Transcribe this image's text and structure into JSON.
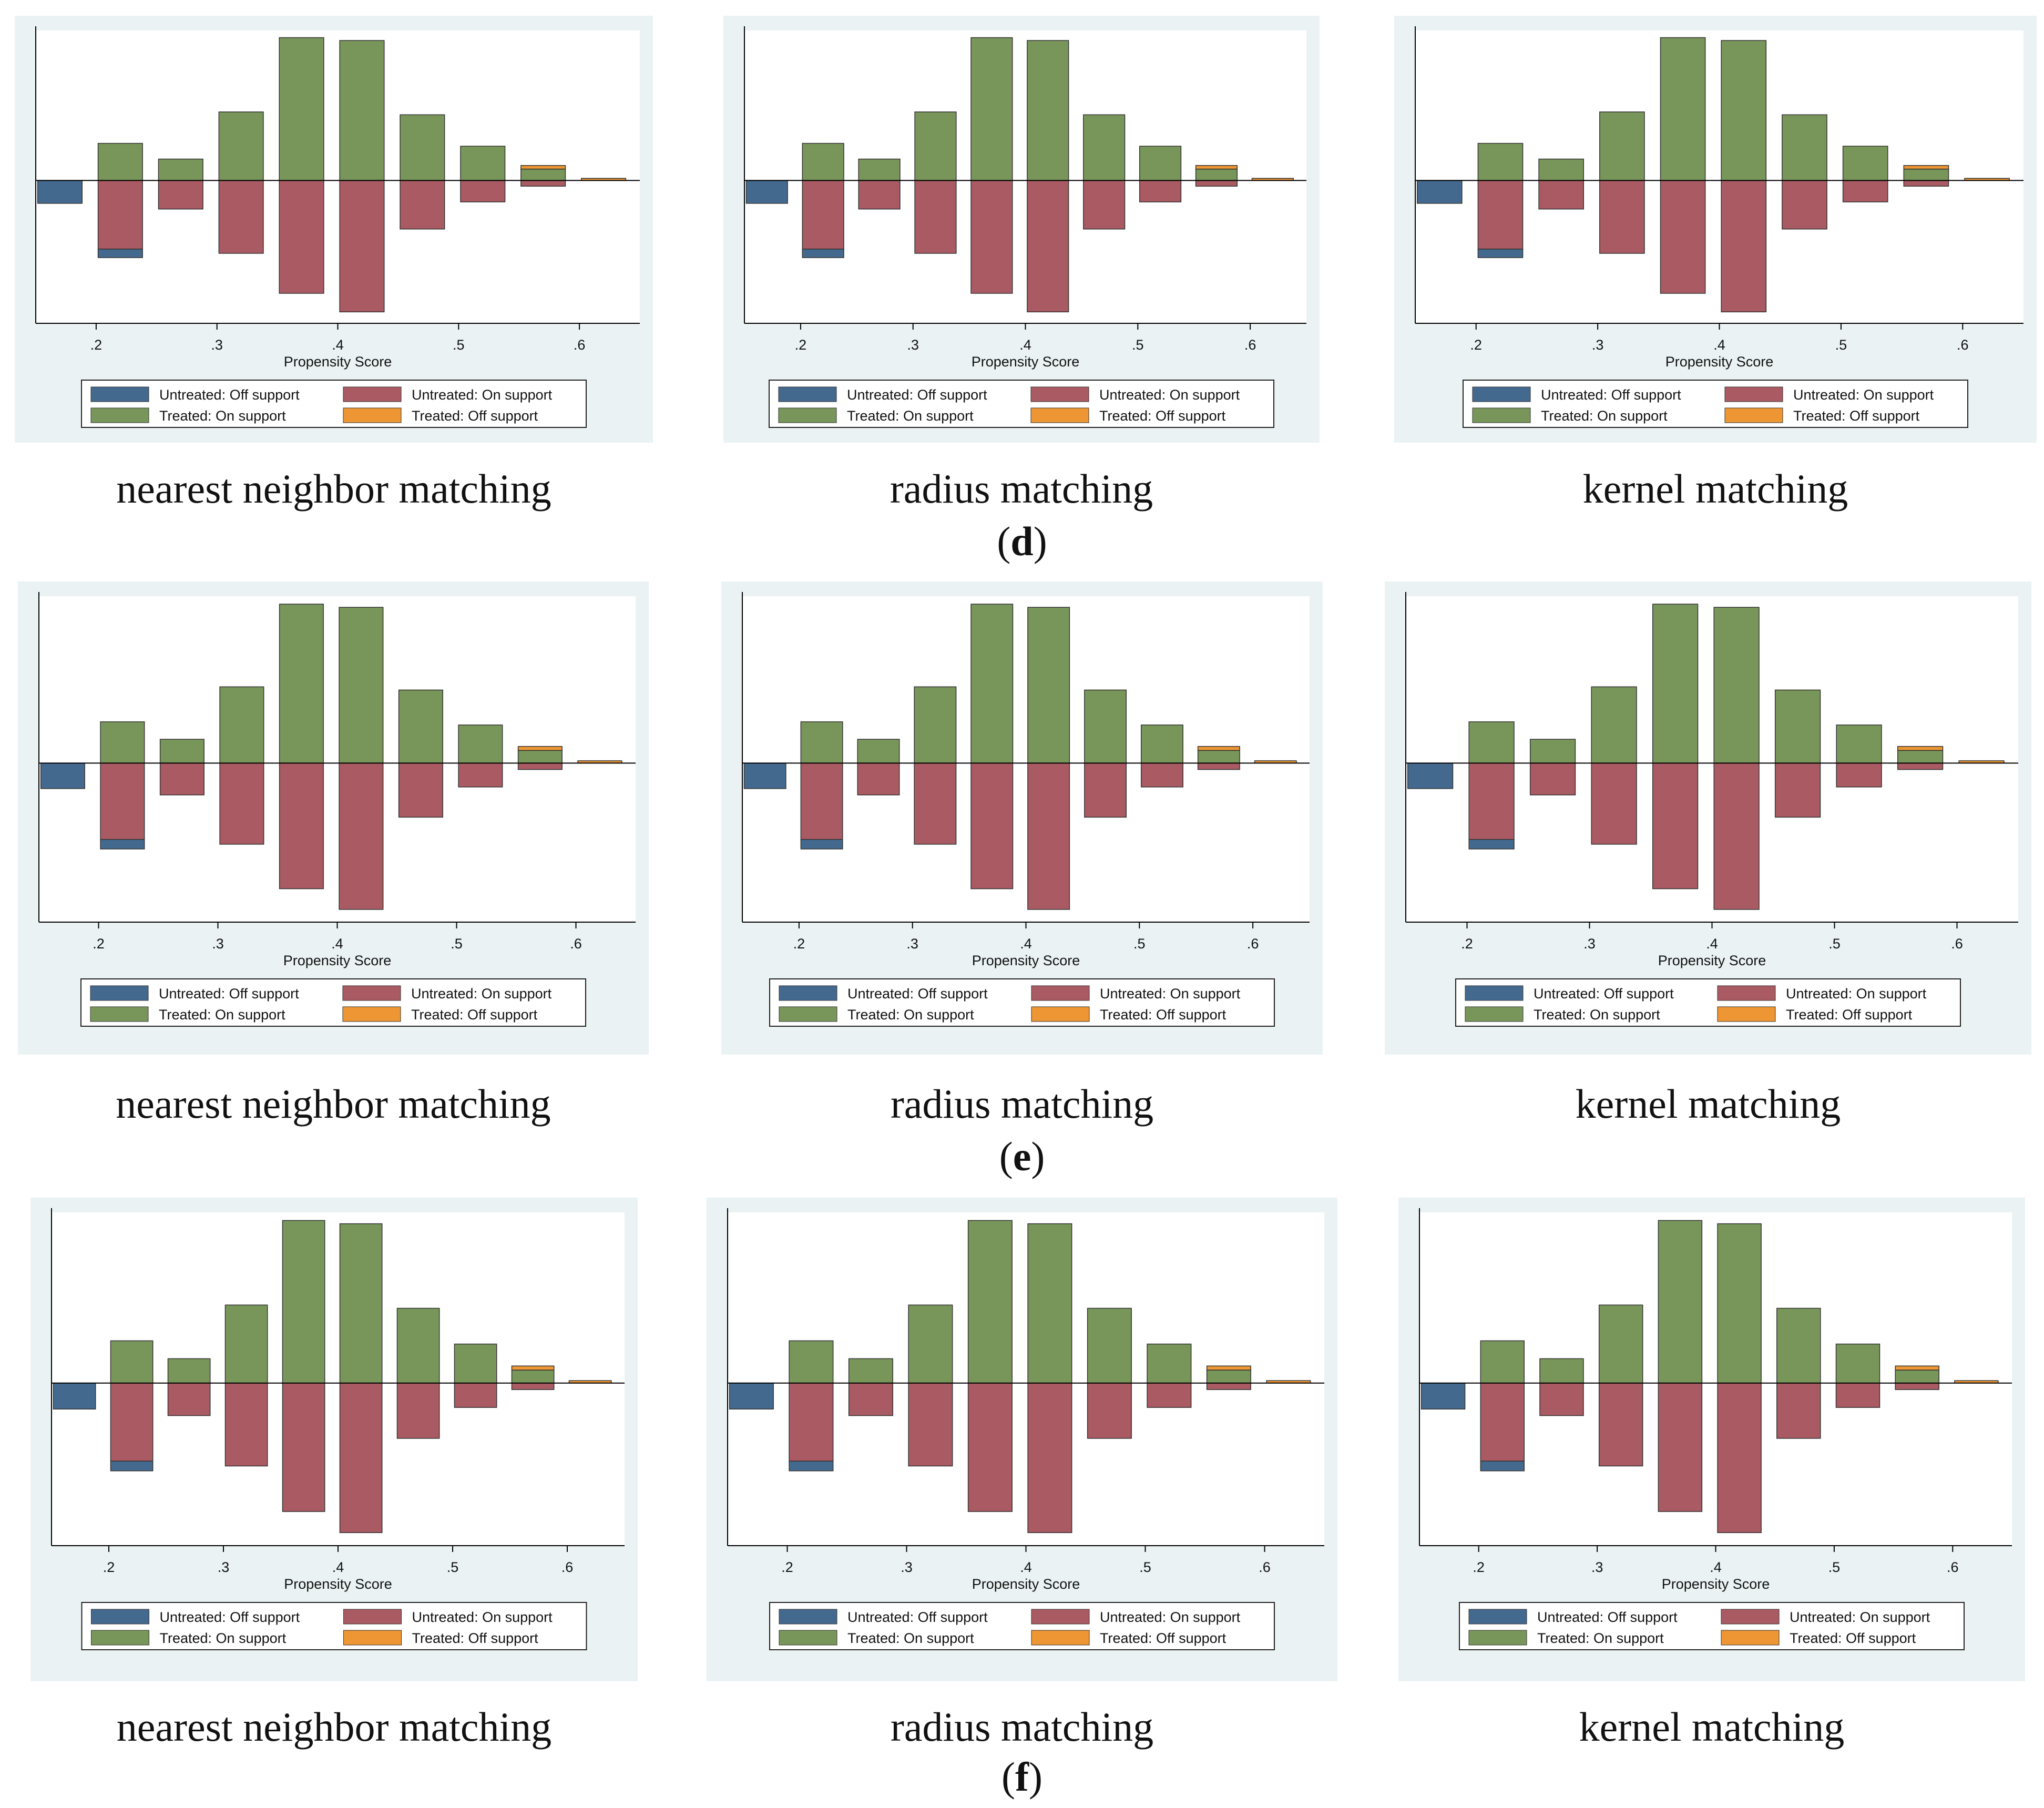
{
  "rows": [
    {
      "label": "d",
      "captions": [
        "nearest neighbor matching",
        "radius matching",
        "kernel matching"
      ]
    },
    {
      "label": "e",
      "captions": [
        "nearest neighbor matching",
        "radius matching",
        "kernel matching"
      ]
    },
    {
      "label": "f",
      "captions": [
        "nearest neighbor matching",
        "radius matching",
        "kernel matching"
      ]
    }
  ],
  "legend": {
    "entries": [
      {
        "label": "Untreated: Off support",
        "color": "#44698f"
      },
      {
        "label": "Untreated: On support",
        "color": "#a95a62"
      },
      {
        "label": "Treated: On support",
        "color": "#78965a"
      },
      {
        "label": "Treated: Off support",
        "color": "#ee9633"
      }
    ]
  },
  "chart_data": {
    "type": "bar",
    "title": "",
    "xlabel": "Propensity Score",
    "ylabel": "",
    "xlim": [
      0.15,
      0.65
    ],
    "ylim": [
      -1,
      1.05
    ],
    "x_ticks": [
      0.2,
      0.3,
      0.4,
      0.5,
      0.6
    ],
    "x_tick_labels": [
      ".2",
      ".3",
      ".4",
      ".5",
      ".6"
    ],
    "bin_width": 0.04,
    "treated_on_support": [
      {
        "x": 0.22,
        "value": 0.26
      },
      {
        "x": 0.27,
        "value": 0.15
      },
      {
        "x": 0.32,
        "value": 0.48
      },
      {
        "x": 0.37,
        "value": 1.0
      },
      {
        "x": 0.42,
        "value": 0.98
      },
      {
        "x": 0.47,
        "value": 0.46
      },
      {
        "x": 0.52,
        "value": 0.24
      },
      {
        "x": 0.57,
        "value": 0.08
      }
    ],
    "treated_off_support": [
      {
        "x": 0.57,
        "base": 0.08,
        "value": 0.025
      },
      {
        "x": 0.62,
        "base": 0.0,
        "value": 0.015
      }
    ],
    "untreated_on_support": [
      {
        "x": 0.22,
        "value": -0.48
      },
      {
        "x": 0.27,
        "value": -0.2
      },
      {
        "x": 0.32,
        "value": -0.51
      },
      {
        "x": 0.37,
        "value": -0.79
      },
      {
        "x": 0.42,
        "value": -0.92
      },
      {
        "x": 0.47,
        "value": -0.34
      },
      {
        "x": 0.52,
        "value": -0.15
      },
      {
        "x": 0.57,
        "value": -0.04
      }
    ],
    "untreated_off_support": [
      {
        "x": 0.17,
        "base": 0.0,
        "value": -0.16
      },
      {
        "x": 0.22,
        "base": -0.48,
        "value": -0.06
      }
    ]
  }
}
